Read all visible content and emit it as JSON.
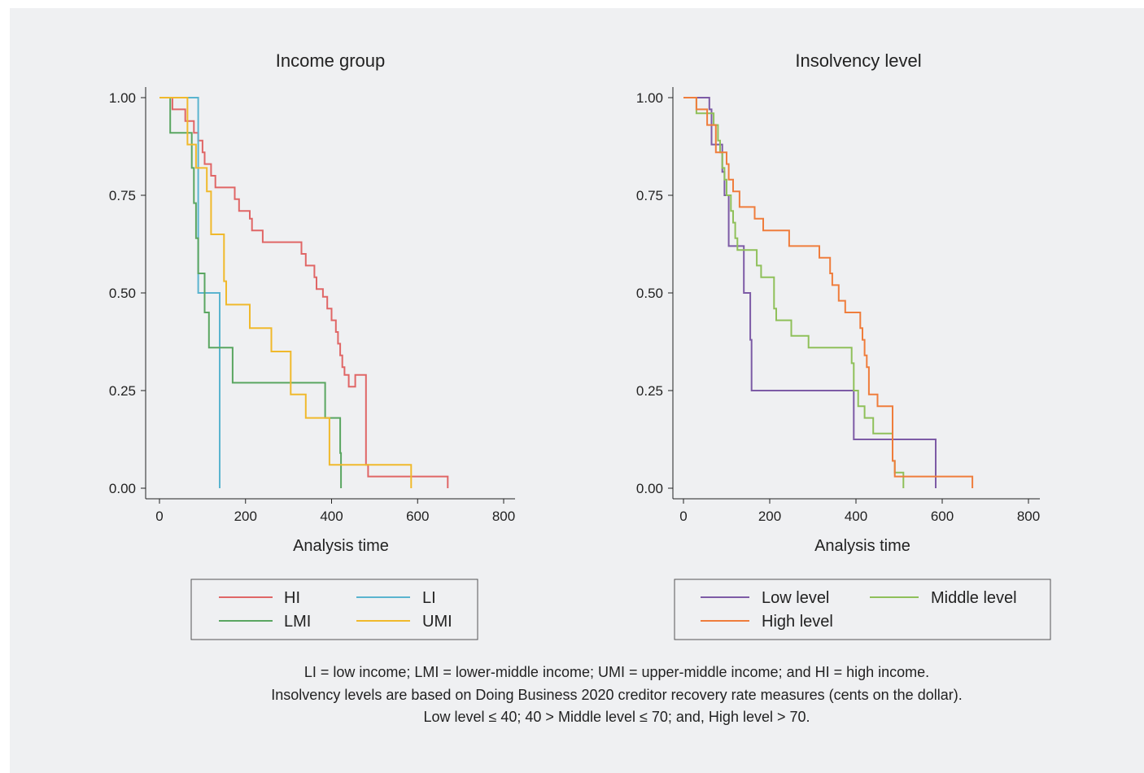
{
  "chart_data": [
    {
      "type": "line",
      "title": "Income group",
      "xlabel": "Analysis time",
      "ylabel": "",
      "xlim": [
        0,
        800
      ],
      "ylim": [
        0,
        1
      ],
      "xticks": [
        0,
        200,
        400,
        600,
        800
      ],
      "xtick_labels": [
        "0",
        "200",
        "400",
        "600",
        "800"
      ],
      "yticks": [
        0,
        0.25,
        0.5,
        0.75,
        1
      ],
      "ytick_labels": [
        "0.00",
        "0.25",
        "0.50",
        "0.75",
        "1.00"
      ],
      "legend_position": "bottom",
      "series": [
        {
          "name": "HI",
          "color": "#e06666",
          "x": [
            0,
            30,
            30,
            60,
            60,
            80,
            80,
            90,
            90,
            100,
            100,
            105,
            105,
            120,
            120,
            130,
            130,
            175,
            175,
            185,
            185,
            210,
            210,
            215,
            215,
            240,
            240,
            250,
            250,
            330,
            330,
            340,
            340,
            360,
            360,
            365,
            365,
            380,
            380,
            390,
            390,
            400,
            400,
            410,
            410,
            415,
            415,
            420,
            420,
            425,
            425,
            430,
            430,
            440,
            440,
            455,
            455,
            480,
            480,
            485,
            485,
            510,
            510,
            670,
            670
          ],
          "y": [
            1,
            1,
            0.97,
            0.97,
            0.94,
            0.94,
            0.91,
            0.91,
            0.89,
            0.89,
            0.86,
            0.86,
            0.83,
            0.83,
            0.8,
            0.8,
            0.77,
            0.77,
            0.74,
            0.74,
            0.71,
            0.71,
            0.69,
            0.69,
            0.66,
            0.66,
            0.63,
            0.63,
            0.63,
            0.63,
            0.6,
            0.6,
            0.57,
            0.57,
            0.54,
            0.54,
            0.51,
            0.51,
            0.49,
            0.49,
            0.46,
            0.46,
            0.43,
            0.43,
            0.4,
            0.4,
            0.37,
            0.37,
            0.34,
            0.34,
            0.31,
            0.31,
            0.29,
            0.29,
            0.26,
            0.26,
            0.29,
            0.29,
            0.06,
            0.06,
            0.03,
            0.03,
            0.03,
            0.03,
            0
          ]
        },
        {
          "name": "LI",
          "color": "#5ab4cf",
          "x": [
            0,
            90,
            90,
            140,
            140
          ],
          "y": [
            1,
            1,
            0.5,
            0.5,
            0
          ]
        },
        {
          "name": "LMI",
          "color": "#5aa661",
          "x": [
            0,
            25,
            25,
            75,
            75,
            80,
            80,
            85,
            85,
            90,
            90,
            105,
            105,
            115,
            115,
            120,
            120,
            170,
            170,
            385,
            385,
            420,
            420,
            422,
            422
          ],
          "y": [
            1,
            1,
            0.91,
            0.91,
            0.82,
            0.82,
            0.73,
            0.73,
            0.64,
            0.64,
            0.55,
            0.55,
            0.45,
            0.45,
            0.36,
            0.36,
            0.36,
            0.36,
            0.27,
            0.27,
            0.18,
            0.18,
            0.09,
            0.09,
            0
          ]
        },
        {
          "name": "UMI",
          "color": "#f0b92c",
          "x": [
            0,
            65,
            65,
            85,
            85,
            110,
            110,
            115,
            115,
            120,
            120,
            125,
            125,
            150,
            150,
            155,
            155,
            165,
            165,
            210,
            210,
            260,
            260,
            305,
            305,
            315,
            315,
            340,
            340,
            395,
            395,
            400,
            400,
            420,
            420,
            585,
            585
          ],
          "y": [
            1,
            1,
            0.88,
            0.88,
            0.82,
            0.82,
            0.76,
            0.76,
            0.76,
            0.76,
            0.65,
            0.65,
            0.65,
            0.65,
            0.53,
            0.53,
            0.47,
            0.47,
            0.47,
            0.47,
            0.41,
            0.41,
            0.35,
            0.35,
            0.24,
            0.24,
            0.24,
            0.24,
            0.18,
            0.18,
            0.06,
            0.06,
            0.06,
            0.06,
            0.06,
            0.06,
            0
          ]
        }
      ]
    },
    {
      "type": "line",
      "title": "Insolvency level",
      "xlabel": "Analysis time",
      "ylabel": "",
      "xlim": [
        0,
        800
      ],
      "ylim": [
        0,
        1
      ],
      "xticks": [
        0,
        200,
        400,
        600,
        800
      ],
      "xtick_labels": [
        "0",
        "200",
        "400",
        "600",
        "800"
      ],
      "yticks": [
        0,
        0.25,
        0.5,
        0.75,
        1
      ],
      "ytick_labels": [
        "0.00",
        "0.25",
        "0.50",
        "0.75",
        "1.00"
      ],
      "legend_position": "bottom",
      "series": [
        {
          "name": "Low level",
          "color": "#7d5ba6",
          "x": [
            0,
            60,
            60,
            65,
            65,
            85,
            85,
            90,
            90,
            95,
            95,
            100,
            100,
            105,
            105,
            110,
            110,
            140,
            140,
            145,
            145,
            155,
            155,
            158,
            158,
            395,
            395,
            585,
            585
          ],
          "y": [
            1,
            1,
            0.97,
            0.97,
            0.88,
            0.88,
            0.88,
            0.88,
            0.81,
            0.81,
            0.75,
            0.75,
            0.75,
            0.75,
            0.62,
            0.62,
            0.62,
            0.62,
            0.5,
            0.5,
            0.5,
            0.5,
            0.38,
            0.38,
            0.25,
            0.25,
            0.125,
            0.125,
            0
          ]
        },
        {
          "name": "Middle level",
          "color": "#8fc05a",
          "x": [
            0,
            30,
            30,
            70,
            70,
            80,
            80,
            85,
            85,
            90,
            90,
            95,
            95,
            100,
            100,
            110,
            110,
            115,
            115,
            120,
            120,
            125,
            125,
            170,
            170,
            180,
            180,
            195,
            195,
            210,
            210,
            215,
            215,
            250,
            250,
            290,
            290,
            390,
            390,
            395,
            395,
            405,
            405,
            420,
            420,
            440,
            440,
            470,
            470,
            485,
            485,
            490,
            490,
            510,
            510
          ],
          "y": [
            1,
            1,
            0.96,
            0.96,
            0.93,
            0.93,
            0.89,
            0.89,
            0.86,
            0.86,
            0.82,
            0.82,
            0.79,
            0.79,
            0.75,
            0.75,
            0.71,
            0.71,
            0.68,
            0.68,
            0.64,
            0.64,
            0.61,
            0.61,
            0.57,
            0.57,
            0.54,
            0.54,
            0.54,
            0.54,
            0.46,
            0.46,
            0.43,
            0.43,
            0.39,
            0.39,
            0.36,
            0.36,
            0.32,
            0.32,
            0.25,
            0.25,
            0.21,
            0.21,
            0.18,
            0.18,
            0.14,
            0.14,
            0.14,
            0.14,
            0.07,
            0.07,
            0.04,
            0.04,
            0
          ]
        },
        {
          "name": "High level",
          "color": "#ef7d3c",
          "x": [
            0,
            30,
            30,
            55,
            55,
            75,
            75,
            90,
            90,
            95,
            95,
            100,
            100,
            105,
            105,
            115,
            115,
            130,
            130,
            165,
            165,
            185,
            185,
            245,
            245,
            315,
            315,
            340,
            340,
            345,
            345,
            360,
            360,
            375,
            375,
            410,
            410,
            415,
            415,
            420,
            420,
            425,
            425,
            430,
            430,
            450,
            450,
            485,
            485,
            490,
            490,
            670,
            670
          ],
          "y": [
            1,
            1,
            0.97,
            0.97,
            0.93,
            0.93,
            0.86,
            0.86,
            0.86,
            0.86,
            0.86,
            0.86,
            0.83,
            0.83,
            0.79,
            0.79,
            0.76,
            0.76,
            0.72,
            0.72,
            0.69,
            0.69,
            0.66,
            0.66,
            0.62,
            0.62,
            0.59,
            0.59,
            0.55,
            0.55,
            0.52,
            0.52,
            0.48,
            0.48,
            0.45,
            0.45,
            0.41,
            0.41,
            0.38,
            0.38,
            0.34,
            0.34,
            0.31,
            0.31,
            0.24,
            0.24,
            0.21,
            0.21,
            0.07,
            0.07,
            0.03,
            0.03,
            0
          ]
        }
      ]
    }
  ],
  "notes": [
    "LI = low income; LMI = lower-middle income; UMI = upper-middle income; and HI = high income.",
    "Insolvency levels are based on Doing Business 2020 creditor recovery rate measures (cents on the dollar).",
    "Low level ≤ 40;  40 > Middle level ≤ 70; and, High level > 70."
  ]
}
